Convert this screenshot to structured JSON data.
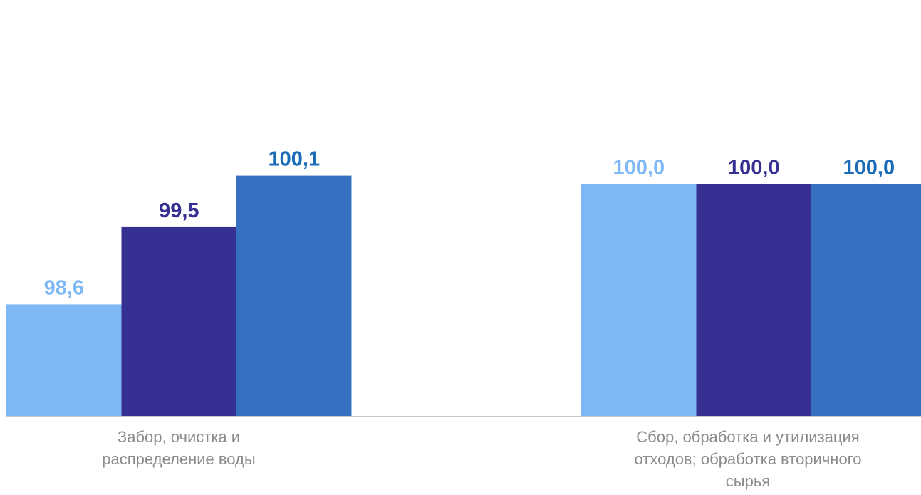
{
  "chart_data": {
    "type": "bar",
    "title": "",
    "xlabel": "",
    "ylabel": "",
    "categories": [
      [
        "Забор, очистка и",
        "распределение воды"
      ],
      [
        "Сбор, обработка и утилизация",
        "отходов; обработка вторичного",
        "сырья"
      ]
    ],
    "series": [
      {
        "color": "#7eb8f7",
        "values": [
          98.6,
          100.0
        ]
      },
      {
        "color": "#363092",
        "values": [
          99.5,
          100.0
        ]
      },
      {
        "color": "#3670c0",
        "values": [
          100.1,
          100.0
        ]
      }
    ],
    "label_colors": [
      "#7eb8f7",
      "#363092",
      "#1a6cb8"
    ],
    "value_labels": [
      [
        "98,6",
        "100,0"
      ],
      [
        "99,5",
        "100,0"
      ],
      [
        "100,1",
        "100,0"
      ]
    ],
    "ylim": [
      97.3,
      100.3
    ],
    "grid": false,
    "legend": "none",
    "axis_color": "#c8c8c8"
  }
}
